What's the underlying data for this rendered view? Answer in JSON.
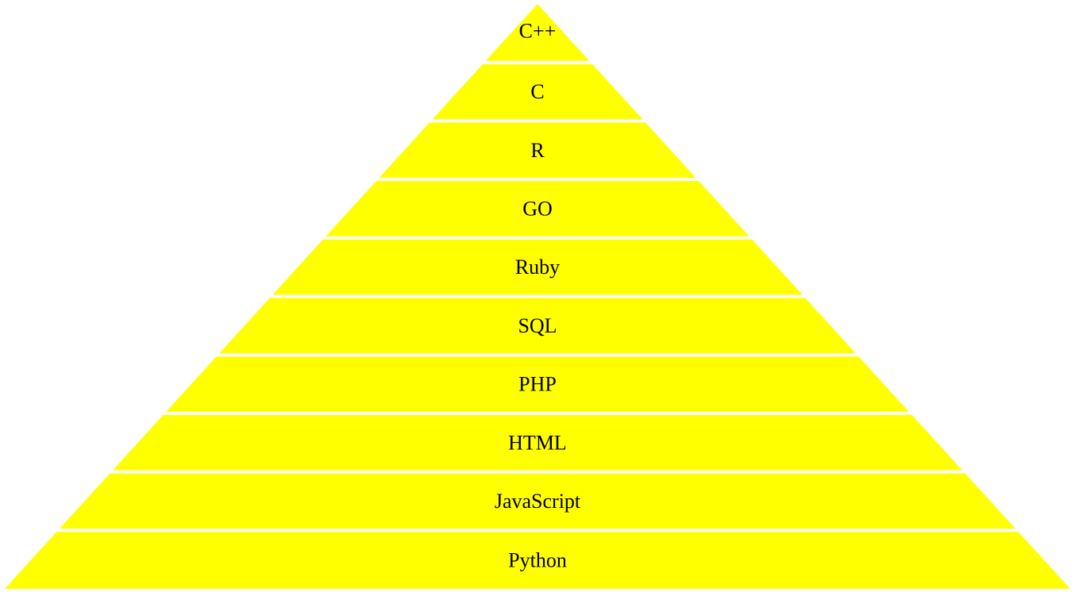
{
  "diagram": {
    "type": "pyramid",
    "fill_color": "#ffff00",
    "separator_color": "#ffffff",
    "levels_top_to_bottom": [
      "C++",
      "C",
      "R",
      "GO",
      "Ruby",
      "SQL",
      "PHP",
      "HTML",
      "JavaScript",
      "Python"
    ]
  }
}
